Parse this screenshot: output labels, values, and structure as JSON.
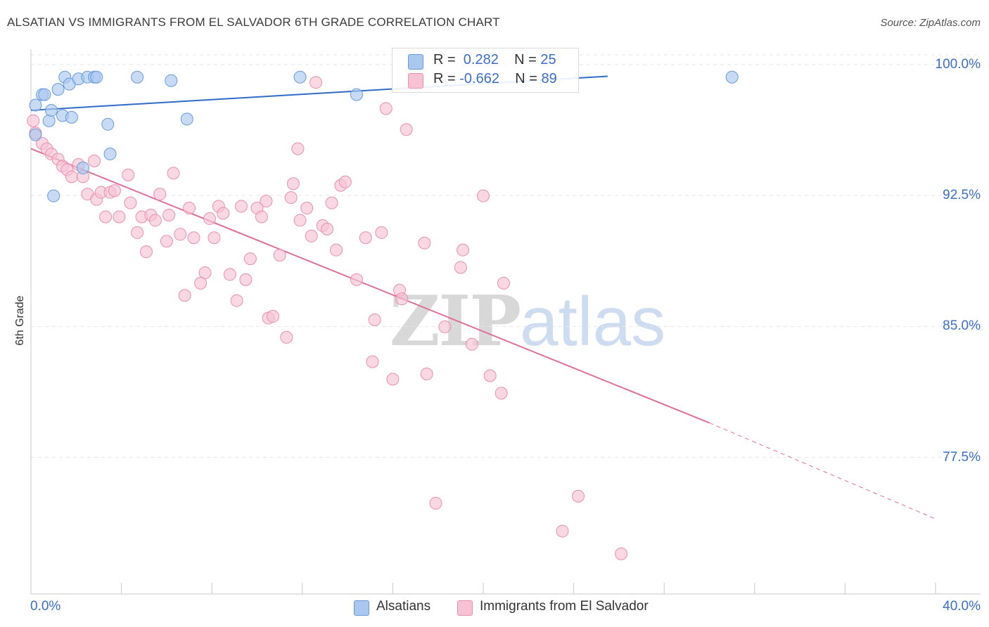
{
  "header": {
    "title": "ALSATIAN VS IMMIGRANTS FROM EL SALVADOR 6TH GRADE CORRELATION CHART",
    "source": "Source: ZipAtlas.com"
  },
  "watermark": {
    "zip": "ZIP",
    "atlas": "atlas"
  },
  "legend_top": {
    "rows": [
      {
        "r_label": "R = ",
        "r_value": " 0.282",
        "n_label": "N = ",
        "n_value": "25"
      },
      {
        "r_label": "R = ",
        "r_value": "-0.662",
        "n_label": "N = ",
        "n_value": "89"
      }
    ]
  },
  "legend_bottom": {
    "items": [
      {
        "label": "Alsatians"
      },
      {
        "label": "Immigrants from El Salvador"
      }
    ]
  },
  "colors": {
    "alsatians_fill": "#a9c8f0",
    "alsatians_stroke": "#6a9bd8",
    "alsatians_line": "#2f6cc8",
    "salvador_fill": "#f7c3d4",
    "salvador_stroke": "#e98fb0",
    "salvador_line": "#e07099",
    "grid": "#e6e6e6",
    "axis_label": "#3a6fc7"
  },
  "chart_data": {
    "type": "scatter",
    "title": "ALSATIAN VS IMMIGRANTS FROM EL SALVADOR 6TH GRADE CORRELATION CHART",
    "xlabel": "",
    "ylabel": "6th Grade",
    "xlim": [
      0,
      40
    ],
    "ylim": [
      70.4,
      101.6
    ],
    "x_tick_labels": [
      "0.0%",
      "40.0%"
    ],
    "y_ticks": [
      100.0,
      92.5,
      85.0,
      77.5
    ],
    "y_tick_labels": [
      "100.0%",
      "92.5%",
      "85.0%",
      "77.5%"
    ],
    "grid": true,
    "series": [
      {
        "name": "Alsatians",
        "R": 0.282,
        "N": 25,
        "trend": {
          "x": [
            0,
            25.5
          ],
          "y": [
            98.1,
            100.05
          ],
          "dashed_to_x": 25.5
        },
        "points": [
          [
            0.2,
            98.4
          ],
          [
            0.5,
            99.0
          ],
          [
            0.6,
            99.0
          ],
          [
            0.8,
            97.5
          ],
          [
            0.9,
            98.1
          ],
          [
            1.2,
            99.3
          ],
          [
            1.4,
            97.8
          ],
          [
            1.5,
            100.0
          ],
          [
            1.7,
            99.6
          ],
          [
            1.8,
            97.7
          ],
          [
            2.1,
            99.9
          ],
          [
            2.3,
            94.8
          ],
          [
            2.5,
            100.0
          ],
          [
            2.8,
            100.0
          ],
          [
            2.9,
            100.0
          ],
          [
            3.4,
            97.3
          ],
          [
            3.5,
            95.6
          ],
          [
            4.7,
            100.0
          ],
          [
            6.2,
            99.8
          ],
          [
            6.9,
            97.6
          ],
          [
            11.9,
            100.0
          ],
          [
            14.4,
            99.0
          ],
          [
            31.0,
            100.0
          ],
          [
            1.0,
            93.2
          ],
          [
            0.2,
            96.7
          ]
        ]
      },
      {
        "name": "Immigrants from El Salvador",
        "R": -0.662,
        "N": 89,
        "trend": {
          "x": [
            0,
            30.0
          ],
          "y": [
            95.9,
            80.2
          ],
          "dashed_to_x": 40.0,
          "dashed_to_y": 74.7
        },
        "points": [
          [
            0.1,
            97.5
          ],
          [
            0.2,
            96.8
          ],
          [
            0.5,
            96.2
          ],
          [
            0.7,
            95.9
          ],
          [
            0.9,
            95.6
          ],
          [
            1.2,
            95.3
          ],
          [
            1.4,
            94.9
          ],
          [
            1.6,
            94.7
          ],
          [
            1.8,
            94.3
          ],
          [
            2.1,
            95.0
          ],
          [
            2.3,
            94.3
          ],
          [
            2.5,
            93.3
          ],
          [
            2.8,
            95.2
          ],
          [
            2.9,
            93.0
          ],
          [
            3.1,
            93.4
          ],
          [
            3.3,
            92.0
          ],
          [
            3.5,
            93.4
          ],
          [
            3.7,
            93.5
          ],
          [
            3.9,
            92.0
          ],
          [
            4.3,
            94.4
          ],
          [
            4.4,
            92.8
          ],
          [
            4.7,
            91.1
          ],
          [
            4.9,
            92.0
          ],
          [
            5.1,
            90.0
          ],
          [
            5.3,
            92.1
          ],
          [
            5.5,
            91.8
          ],
          [
            5.7,
            93.3
          ],
          [
            6.0,
            90.6
          ],
          [
            6.1,
            92.1
          ],
          [
            6.3,
            94.5
          ],
          [
            6.6,
            91.0
          ],
          [
            6.8,
            87.5
          ],
          [
            7.0,
            92.5
          ],
          [
            7.2,
            90.8
          ],
          [
            7.5,
            88.2
          ],
          [
            7.7,
            88.8
          ],
          [
            7.9,
            91.9
          ],
          [
            8.1,
            90.8
          ],
          [
            8.3,
            92.6
          ],
          [
            8.5,
            92.2
          ],
          [
            8.8,
            88.7
          ],
          [
            9.1,
            87.2
          ],
          [
            9.3,
            92.6
          ],
          [
            9.5,
            88.4
          ],
          [
            9.7,
            89.6
          ],
          [
            10.0,
            92.5
          ],
          [
            10.2,
            92.0
          ],
          [
            10.4,
            92.9
          ],
          [
            10.5,
            86.2
          ],
          [
            10.7,
            86.3
          ],
          [
            11.0,
            89.8
          ],
          [
            11.3,
            85.1
          ],
          [
            11.5,
            93.1
          ],
          [
            11.6,
            93.9
          ],
          [
            11.8,
            95.9
          ],
          [
            11.9,
            91.8
          ],
          [
            12.2,
            92.5
          ],
          [
            12.4,
            90.9
          ],
          [
            12.6,
            99.7
          ],
          [
            12.9,
            91.5
          ],
          [
            13.1,
            91.3
          ],
          [
            13.3,
            92.8
          ],
          [
            13.5,
            90.1
          ],
          [
            13.7,
            93.8
          ],
          [
            13.9,
            94.0
          ],
          [
            14.4,
            88.4
          ],
          [
            14.8,
            90.8
          ],
          [
            15.2,
            86.1
          ],
          [
            15.1,
            83.7
          ],
          [
            15.5,
            91.1
          ],
          [
            15.7,
            98.2
          ],
          [
            16.0,
            82.7
          ],
          [
            16.3,
            87.8
          ],
          [
            16.4,
            87.3
          ],
          [
            16.6,
            97.0
          ],
          [
            17.4,
            90.5
          ],
          [
            17.5,
            83.0
          ],
          [
            17.9,
            75.6
          ],
          [
            18.3,
            85.7
          ],
          [
            19.0,
            89.1
          ],
          [
            19.1,
            90.1
          ],
          [
            19.5,
            84.7
          ],
          [
            20.0,
            93.2
          ],
          [
            20.3,
            82.9
          ],
          [
            20.8,
            81.9
          ],
          [
            20.9,
            88.2
          ],
          [
            23.5,
            74.0
          ],
          [
            24.2,
            76.0
          ],
          [
            26.1,
            72.7
          ]
        ]
      }
    ]
  }
}
